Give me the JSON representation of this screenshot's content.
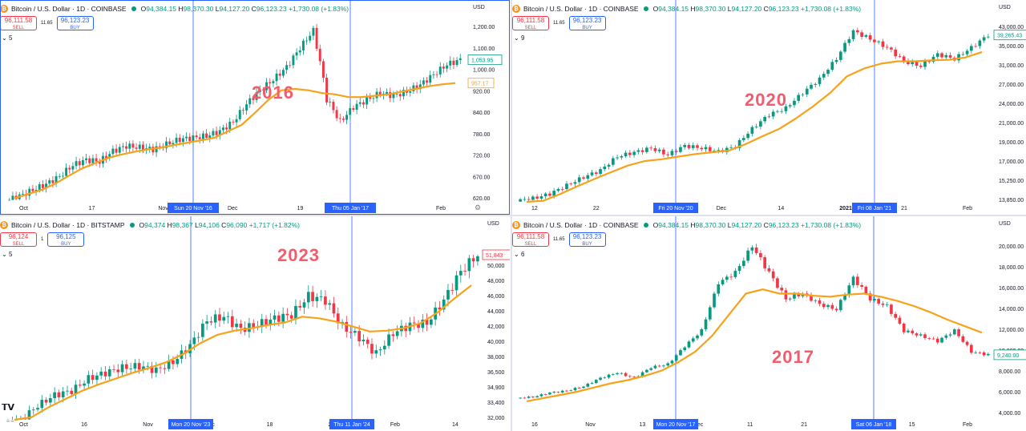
{
  "colors": {
    "up": "#089981",
    "down": "#f23645",
    "ma": "#f7a21b",
    "crosshair": "#2962ff",
    "label": "#f25c6c"
  },
  "icons": [
    "bitcoin-coin-icon",
    "market-open-dot-icon",
    "chevron-down-icon",
    "settings-gear-icon",
    "tradingview-logo-icon"
  ],
  "panels": [
    {
      "id": "p2016",
      "title": "Bitcoin / U.S. Dollar · 1D · COINBASE",
      "ohlc": {
        "o": "94,384.15",
        "h": "98,370.30",
        "l": "94,127.20",
        "c": "96,123.23",
        "chg": "+1,730.08 (+1.83%)"
      },
      "sell": "96,111.58",
      "sell_label": "SELL",
      "spread": "11.65",
      "buy": "96,123.23",
      "buy_label": "BUY",
      "indicator_count": "5",
      "currency": "USD",
      "year_label": "2016",
      "axis": {
        "y_ticks": [
          "1,200.00",
          "1,100.00",
          "1,000.00",
          "920.00",
          "840.00",
          "780.00",
          "720.00",
          "670.00",
          "620.00"
        ],
        "x_ticks": [
          "Oct",
          "17",
          "Nov",
          "Dec",
          "19",
          "16",
          "Feb"
        ]
      },
      "crosshairs": [
        "Sun 20 Nov '16",
        "Thu 05 Jan '17"
      ],
      "price_tags": {
        "last": "1,053.95",
        "ma": "957.17"
      }
    },
    {
      "id": "p2020",
      "title": "Bitcoin / U.S. Dollar · 1D · COINBASE",
      "ohlc": {
        "o": "94,384.15",
        "h": "98,370.30",
        "l": "94,127.20",
        "c": "96,123.23",
        "chg": "+1,730.08 (+1.83%)"
      },
      "sell": "96,111.58",
      "sell_label": "SELL",
      "spread": "11.65",
      "buy": "96,123.23",
      "buy_label": "BUY",
      "indicator_count": "9",
      "currency": "USD",
      "year_label": "2020",
      "axis": {
        "y_ticks": [
          "43,000.00",
          "35,000.00",
          "31,000.00",
          "27,000.00",
          "24,000.00",
          "21,000.00",
          "19,000.00",
          "17,000.00",
          "15,250.00",
          "13,850.00"
        ],
        "x_ticks": [
          "12",
          "22",
          "Nov",
          "Dec",
          "14",
          "2021",
          "21",
          "Feb"
        ]
      },
      "crosshairs": [
        "Fri 20 Nov '20",
        "Fri 08 Jan '21"
      ],
      "price_tags": {
        "last": "39,265.43"
      }
    },
    {
      "id": "p2023",
      "title": "Bitcoin / U.S. Dollar · 1D · BITSTAMP",
      "ohlc": {
        "o": "94,374",
        "h": "98,367",
        "l": "94,106",
        "c": "96,090",
        "chg": "+1,717 (+1.82%)"
      },
      "sell": "96,124",
      "sell_label": "SELL",
      "spread": "1",
      "buy": "96,125",
      "buy_label": "BUY",
      "indicator_count": "5",
      "currency": "USD",
      "year_label": "2023",
      "axis": {
        "y_ticks": [
          "50,000",
          "48,000",
          "46,000",
          "44,000",
          "42,000",
          "40,000",
          "38,000",
          "36,500",
          "34,900",
          "33,400",
          "32,000"
        ],
        "x_ticks": [
          "Oct",
          "16",
          "Nov",
          "Dec",
          "18",
          "2024",
          "Feb",
          "14"
        ]
      },
      "crosshairs": [
        "Mon 20 Nov '23",
        "Thu 11 Jan '24"
      ],
      "price_tags": {
        "last": "51,843"
      }
    },
    {
      "id": "p2017",
      "title": "Bitcoin / U.S. Dollar · 1D · COINBASE",
      "ohlc": {
        "o": "94,384.15",
        "h": "98,370.30",
        "l": "94,127.20",
        "c": "96,123.23",
        "chg": "+1,730.08 (+1.83%)"
      },
      "sell": "96,111.58",
      "sell_label": "SELL",
      "spread": "11.65",
      "buy": "96,123.23",
      "buy_label": "BUY",
      "indicator_count": "6",
      "currency": "USD",
      "year_label": "2017",
      "axis": {
        "y_ticks": [
          "20,000.00",
          "18,000.00",
          "16,000.00",
          "14,000.00",
          "12,000.00",
          "10,000.00",
          "8,000.00",
          "6,000.00",
          "4,000.00"
        ],
        "x_ticks": [
          "16",
          "Nov",
          "13",
          "Dec",
          "11",
          "21",
          "20",
          "15",
          "Feb"
        ]
      },
      "crosshairs": [
        "Mon 20 Nov '17",
        "Sat 06 Jan '18"
      ],
      "price_tags": {
        "last": "9,240.00"
      }
    }
  ],
  "chart_data": [
    {
      "type": "line",
      "subtype": "candlestick-with-moving-average",
      "panel": "p2016",
      "ylim": [
        600,
        1250
      ],
      "log_scale": true,
      "close": [
        610,
        625,
        640,
        660,
        690,
        705,
        700,
        730,
        745,
        740,
        735,
        750,
        765,
        770,
        775,
        790,
        820,
        880,
        930,
        970,
        1020,
        1100,
        1180,
        900,
        820,
        870,
        895,
        920,
        910,
        925,
        950,
        990,
        1030,
        1050
      ],
      "ma": [
        605,
        615,
        625,
        640,
        660,
        680,
        695,
        710,
        720,
        728,
        735,
        740,
        748,
        755,
        762,
        770,
        790,
        810,
        850,
        895,
        930,
        935,
        930,
        920,
        915,
        905,
        905,
        910,
        915,
        925,
        935,
        945,
        952,
        957
      ]
    },
    {
      "type": "line",
      "subtype": "candlestick-with-moving-average",
      "panel": "p2020",
      "ylim": [
        13500,
        44000
      ],
      "log_scale": true,
      "close": [
        13800,
        14200,
        15000,
        15800,
        16500,
        18000,
        18500,
        19000,
        18200,
        19300,
        19000,
        18600,
        19200,
        21500,
        23500,
        24500,
        27000,
        29500,
        33500,
        40000,
        38000,
        36000,
        33000,
        32000,
        34500,
        33500,
        36000,
        39000
      ],
      "ma": [
        13200,
        13600,
        14200,
        14900,
        15600,
        16300,
        17000,
        17500,
        17700,
        18000,
        18300,
        18500,
        18700,
        19500,
        20500,
        21500,
        23000,
        24800,
        27000,
        30000,
        31500,
        32500,
        33000,
        33000,
        33200,
        33300,
        33800,
        35000
      ]
    },
    {
      "type": "line",
      "subtype": "candlestick-with-moving-average",
      "panel": "p2023",
      "ylim": [
        31500,
        51500
      ],
      "close": [
        31500,
        33200,
        34500,
        35000,
        36500,
        37200,
        37800,
        38000,
        37500,
        38500,
        40500,
        43500,
        44000,
        42500,
        43000,
        43800,
        44200,
        46500,
        46000,
        42800,
        41500,
        39500,
        42000,
        43000,
        43200,
        46000,
        49500,
        51500
      ],
      "ma": [
        30500,
        31800,
        33000,
        34000,
        35000,
        35800,
        36500,
        37200,
        37800,
        38500,
        39500,
        40800,
        41800,
        42300,
        42600,
        43000,
        43300,
        44000,
        43800,
        43400,
        42800,
        42200,
        42300,
        42600,
        43200,
        44500,
        46200,
        47800
      ]
    },
    {
      "type": "line",
      "subtype": "candlestick-with-moving-average",
      "panel": "p2017",
      "ylim": [
        3500,
        20500
      ],
      "close": [
        5200,
        5600,
        5800,
        6200,
        7000,
        7500,
        7000,
        8000,
        8300,
        10000,
        11500,
        16000,
        17000,
        19500,
        17000,
        14500,
        15000,
        14000,
        13500,
        16500,
        14500,
        13800,
        11500,
        11000,
        10500,
        11500,
        9500,
        9200
      ],
      "ma": [
        4800,
        5100,
        5400,
        5700,
        6100,
        6500,
        6800,
        7200,
        7700,
        8500,
        9500,
        11000,
        13000,
        15000,
        15400,
        15000,
        15000,
        14800,
        14700,
        14900,
        15000,
        14700,
        14300,
        13800,
        13200,
        12500,
        11900,
        11300
      ]
    }
  ]
}
